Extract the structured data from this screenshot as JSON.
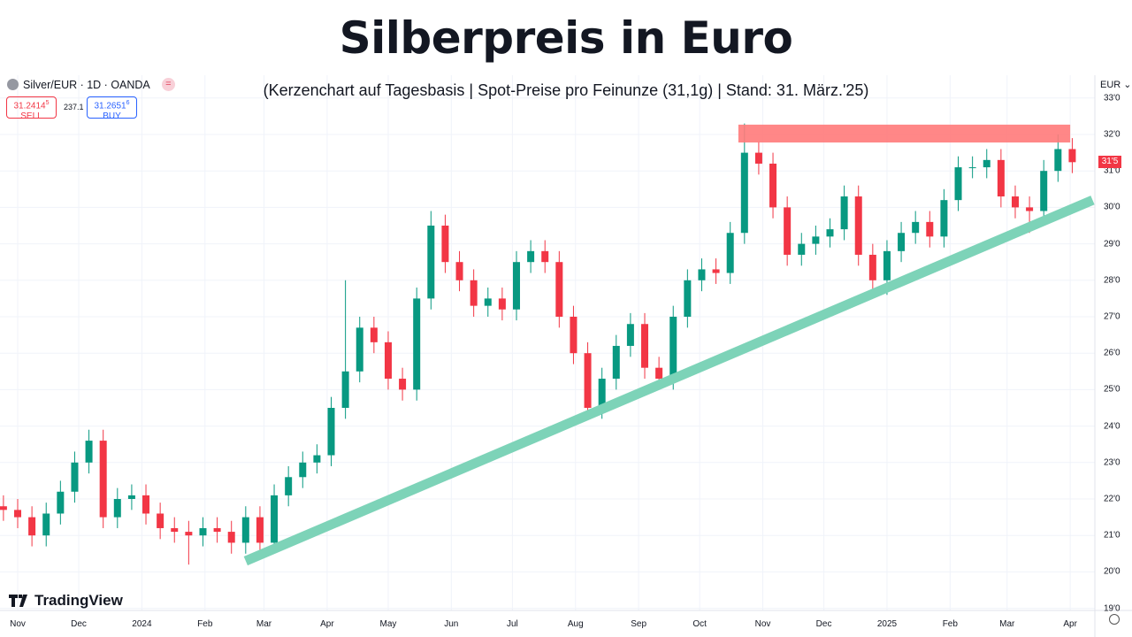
{
  "header": {
    "title": "Silberpreis in Euro",
    "subtitle": "(Kerzenchart auf Tagesbasis | Spot-Preise pro Feinunze (31,1g) | Stand: 31. März.'25)"
  },
  "symbol_bar": {
    "symbol": "Silver/EUR · 1D · OANDA",
    "sell_price": "31.2414",
    "sell_price_sup": "5",
    "sell_label": "SELL",
    "spread": "237.1",
    "buy_price": "31.2651",
    "buy_price_sup": "6",
    "buy_label": "BUY",
    "currency": "EUR",
    "last_price_label": "31'5"
  },
  "branding": {
    "logo_text": "TradingView"
  },
  "colors": {
    "up": "#089981",
    "down": "#f23645",
    "resistance": "#ff7a7a",
    "trendline": "#7dd3b8"
  },
  "chart_data": {
    "type": "candlestick",
    "title": "Silberpreis in Euro",
    "interval_note": "approximated weekly OHLC of the daily candle chart",
    "start_week": "2023-10-23",
    "close": [
      21.7,
      21.5,
      21.0,
      21.6,
      22.2,
      23.0,
      23.6,
      21.5,
      22.0,
      22.1,
      21.6,
      21.2,
      21.1,
      21.0,
      21.2,
      21.1,
      20.8,
      21.5,
      20.8,
      22.1,
      22.6,
      23.0,
      23.2,
      24.5,
      25.5,
      26.7,
      26.3,
      25.3,
      25.0,
      27.5,
      29.5,
      28.5,
      28.0,
      27.3,
      27.5,
      27.2,
      28.5,
      28.8,
      28.5,
      27.0,
      26.0,
      24.5,
      25.3,
      26.2,
      26.8,
      25.6,
      25.3,
      27.0,
      28.0,
      28.3,
      28.2,
      29.3,
      31.5,
      31.2,
      30.0,
      28.7,
      29.0,
      29.2,
      29.4,
      30.3,
      28.7,
      28.0,
      28.8,
      29.3,
      29.6,
      29.2,
      30.2,
      31.1,
      31.1,
      31.3,
      30.3,
      30.0,
      29.9,
      31.0,
      31.6,
      31.24
    ],
    "first_open": 21.8,
    "notable_extremes": [
      {
        "date": "2023-12-04",
        "high": 23.9
      },
      {
        "date": "2024-01-24",
        "low": 20.2
      },
      {
        "date": "2024-04-12",
        "high": 28.0
      },
      {
        "date": "2024-05-20",
        "high": 29.9
      },
      {
        "date": "2024-08-05",
        "low": 24.2
      },
      {
        "date": "2024-10-22",
        "high": 32.3
      },
      {
        "date": "2024-12-30",
        "low": 27.6
      },
      {
        "date": "2025-03-10",
        "low": 29.3
      },
      {
        "date": "2025-03-28",
        "high": 32.0
      }
    ],
    "y_axis": {
      "min": 19,
      "max": 33,
      "ticks": [
        "33'0",
        "32'0",
        "31'0",
        "30'0",
        "29'0",
        "28'0",
        "27'0",
        "26'0",
        "25'0",
        "24'0",
        "23'0",
        "22'0",
        "21'0",
        "20'0",
        "19'0"
      ],
      "position": "right"
    },
    "x_axis": {
      "ticks": [
        {
          "label": "Nov",
          "date": "2023-11-01"
        },
        {
          "label": "Dec",
          "date": "2023-12-01"
        },
        {
          "label": "2024",
          "date": "2024-01-01"
        },
        {
          "label": "Feb",
          "date": "2024-02-01"
        },
        {
          "label": "Mar",
          "date": "2024-03-01"
        },
        {
          "label": "Apr",
          "date": "2024-04-01"
        },
        {
          "label": "May",
          "date": "2024-05-01"
        },
        {
          "label": "Jun",
          "date": "2024-06-01"
        },
        {
          "label": "Jul",
          "date": "2024-07-01"
        },
        {
          "label": "Aug",
          "date": "2024-08-01"
        },
        {
          "label": "Sep",
          "date": "2024-09-01"
        },
        {
          "label": "Oct",
          "date": "2024-10-01"
        },
        {
          "label": "Nov",
          "date": "2024-11-01"
        },
        {
          "label": "Dec",
          "date": "2024-12-01"
        },
        {
          "label": "2025",
          "date": "2025-01-01"
        },
        {
          "label": "Feb",
          "date": "2025-02-01"
        },
        {
          "label": "Mar",
          "date": "2025-03-01"
        },
        {
          "label": "Apr",
          "date": "2025-04-01"
        }
      ]
    },
    "grid": true,
    "annotations": {
      "resistance_zone": {
        "from": "2024-10-20",
        "to": "2025-04-01",
        "price_low": 31.78,
        "price_high": 32.27
      },
      "support_trendline": {
        "from_date": "2024-02-21",
        "from_price": 20.3,
        "to_date": "2025-04-12",
        "to_price": 30.2
      }
    }
  }
}
